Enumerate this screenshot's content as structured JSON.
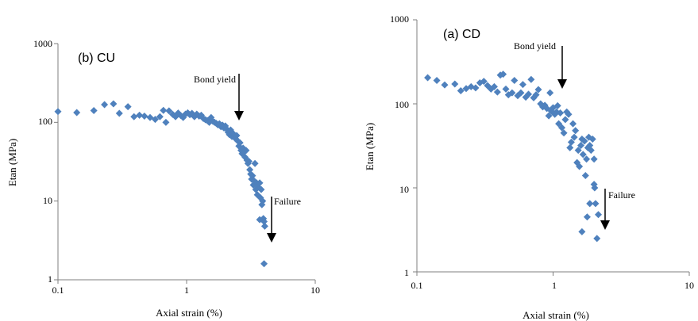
{
  "chart_data": [
    {
      "type": "scatter",
      "panel_label": "(b) CU",
      "xlabel": "Axial strain (%)",
      "ylabel": "Etan (MPa)",
      "x_scale": "log",
      "y_scale": "log",
      "xlim": [
        0.1,
        10
      ],
      "ylim": [
        1,
        1000
      ],
      "x_ticks": [
        "0.1",
        "1",
        "10"
      ],
      "y_ticks": [
        "1",
        "10",
        "100",
        "1000"
      ],
      "grid": false,
      "marker_color": "#4f81bd",
      "annotations": [
        {
          "text": "Bond yield",
          "x": 2.6,
          "y": 100
        },
        {
          "text": "Failure",
          "x": 4.5,
          "y": 4.6
        }
      ],
      "series": [
        {
          "points": [
            [
              0.1,
              137
            ],
            [
              0.14,
              133
            ],
            [
              0.19,
              141
            ],
            [
              0.23,
              168
            ],
            [
              0.27,
              172
            ],
            [
              0.3,
              130
            ],
            [
              0.35,
              158
            ],
            [
              0.39,
              118
            ],
            [
              0.43,
              123
            ],
            [
              0.47,
              120
            ],
            [
              0.52,
              115
            ],
            [
              0.57,
              109
            ],
            [
              0.62,
              118
            ],
            [
              0.66,
              142
            ],
            [
              0.69,
              100
            ],
            [
              0.73,
              140
            ],
            [
              0.78,
              126
            ],
            [
              0.82,
              118
            ],
            [
              0.86,
              131
            ],
            [
              0.9,
              122
            ],
            [
              0.94,
              115
            ],
            [
              0.98,
              127
            ],
            [
              1.02,
              132
            ],
            [
              1.06,
              125
            ],
            [
              1.1,
              130
            ],
            [
              1.15,
              118
            ],
            [
              1.2,
              127
            ],
            [
              1.25,
              120
            ],
            [
              1.3,
              123
            ],
            [
              1.35,
              112
            ],
            [
              1.4,
              108
            ],
            [
              1.45,
              105
            ],
            [
              1.5,
              100
            ],
            [
              1.55,
              115
            ],
            [
              1.6,
              103
            ],
            [
              1.65,
              100
            ],
            [
              1.7,
              97
            ],
            [
              1.75,
              93
            ],
            [
              1.8,
              96
            ],
            [
              1.85,
              88
            ],
            [
              1.9,
              92
            ],
            [
              1.95,
              85
            ],
            [
              2.0,
              90
            ],
            [
              2.05,
              82
            ],
            [
              2.1,
              75
            ],
            [
              2.15,
              70
            ],
            [
              2.2,
              80
            ],
            [
              2.25,
              66
            ],
            [
              2.3,
              72
            ],
            [
              2.4,
              62
            ],
            [
              2.45,
              68
            ],
            [
              2.5,
              58
            ],
            [
              2.55,
              50
            ],
            [
              2.6,
              55
            ],
            [
              2.65,
              44
            ],
            [
              2.7,
              40
            ],
            [
              2.75,
              47
            ],
            [
              2.8,
              42
            ],
            [
              2.85,
              36
            ],
            [
              2.9,
              44
            ],
            [
              2.95,
              33
            ],
            [
              3.0,
              30
            ],
            [
              3.05,
              32
            ],
            [
              3.1,
              25
            ],
            [
              3.15,
              22
            ],
            [
              3.2,
              19
            ],
            [
              3.25,
              21
            ],
            [
              3.3,
              16
            ],
            [
              3.35,
              18
            ],
            [
              3.4,
              30
            ],
            [
              3.45,
              14
            ],
            [
              3.5,
              17
            ],
            [
              3.55,
              12
            ],
            [
              3.6,
              15
            ],
            [
              3.7,
              17
            ],
            [
              3.75,
              11
            ],
            [
              3.8,
              14
            ],
            [
              3.85,
              9
            ],
            [
              3.9,
              10
            ],
            [
              3.95,
              6
            ],
            [
              4.0,
              5.5
            ],
            [
              4.05,
              4.8
            ],
            [
              3.7,
              5.8
            ],
            [
              4.0,
              1.6
            ]
          ]
        }
      ]
    },
    {
      "type": "scatter",
      "panel_label": "(a) CD",
      "xlabel": "Axial strain (%)",
      "ylabel": "Etan (MPa)",
      "x_scale": "log",
      "y_scale": "log",
      "xlim": [
        0.1,
        10
      ],
      "ylim": [
        1,
        1000
      ],
      "x_ticks": [
        "0.1",
        "1",
        "10"
      ],
      "y_ticks": [
        "1",
        "10",
        "100",
        "1000"
      ],
      "grid": false,
      "marker_color": "#4f81bd",
      "annotations": [
        {
          "text": "Bond yield",
          "x": 1.1,
          "y": 180
        },
        {
          "text": "Failure",
          "x": 2.3,
          "y": 9
        }
      ],
      "series": [
        {
          "points": [
            [
              0.12,
              205
            ],
            [
              0.14,
              190
            ],
            [
              0.16,
              168
            ],
            [
              0.19,
              172
            ],
            [
              0.21,
              143
            ],
            [
              0.23,
              152
            ],
            [
              0.25,
              160
            ],
            [
              0.27,
              155
            ],
            [
              0.29,
              178
            ],
            [
              0.31,
              185
            ],
            [
              0.33,
              165
            ],
            [
              0.35,
              150
            ],
            [
              0.37,
              160
            ],
            [
              0.39,
              138
            ],
            [
              0.41,
              220
            ],
            [
              0.43,
              225
            ],
            [
              0.45,
              150
            ],
            [
              0.47,
              128
            ],
            [
              0.5,
              135
            ],
            [
              0.52,
              190
            ],
            [
              0.55,
              125
            ],
            [
              0.58,
              135
            ],
            [
              0.6,
              170
            ],
            [
              0.63,
              120
            ],
            [
              0.66,
              130
            ],
            [
              0.69,
              195
            ],
            [
              0.72,
              118
            ],
            [
              0.75,
              128
            ],
            [
              0.78,
              148
            ],
            [
              0.81,
              100
            ],
            [
              0.84,
              92
            ],
            [
              0.87,
              96
            ],
            [
              0.9,
              88
            ],
            [
              0.93,
              72
            ],
            [
              0.95,
              135
            ],
            [
              0.97,
              82
            ],
            [
              1.0,
              90
            ],
            [
              1.03,
              75
            ],
            [
              1.06,
              80
            ],
            [
              1.08,
              95
            ],
            [
              1.1,
              58
            ],
            [
              1.13,
              78
            ],
            [
              1.16,
              52
            ],
            [
              1.2,
              45
            ],
            [
              1.23,
              65
            ],
            [
              1.26,
              80
            ],
            [
              1.3,
              75
            ],
            [
              1.33,
              30
            ],
            [
              1.36,
              35
            ],
            [
              1.4,
              58
            ],
            [
              1.43,
              40
            ],
            [
              1.46,
              48
            ],
            [
              1.5,
              20
            ],
            [
              1.53,
              28
            ],
            [
              1.56,
              18
            ],
            [
              1.6,
              32
            ],
            [
              1.63,
              38
            ],
            [
              1.66,
              25
            ],
            [
              1.7,
              36
            ],
            [
              1.73,
              14
            ],
            [
              1.76,
              22
            ],
            [
              1.8,
              30
            ],
            [
              1.83,
              40
            ],
            [
              1.86,
              32
            ],
            [
              1.9,
              28
            ],
            [
              1.95,
              38
            ],
            [
              2.0,
              22
            ],
            [
              1.63,
              3
            ],
            [
              1.78,
              4.5
            ],
            [
              1.86,
              6.5
            ],
            [
              2.0,
              11
            ],
            [
              2.02,
              10
            ],
            [
              2.05,
              6.5
            ],
            [
              2.15,
              4.8
            ],
            [
              2.1,
              2.5
            ]
          ]
        }
      ]
    }
  ]
}
